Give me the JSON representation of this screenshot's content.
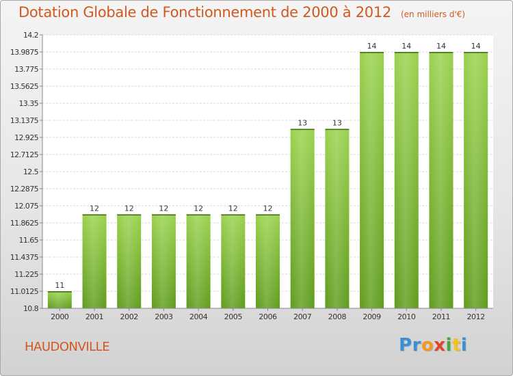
{
  "page": {
    "title": "Dotation Globale de Fonctionnement de 2000 à 2012",
    "subtitle": "(en milliers d'€)",
    "commune": "HAUDONVILLE",
    "brand": {
      "letters": [
        "P",
        "r",
        "o",
        "x",
        "i",
        "t",
        "i"
      ],
      "colors": [
        "#3a8fd6",
        "#3a8fd6",
        "#f29a1d",
        "#e2462a",
        "#4ba43c",
        "#f2c41d",
        "#3a8fd6"
      ]
    }
  },
  "chart_data": {
    "type": "bar",
    "title": "Dotation Globale de Fonctionnement de 2000 à 2012",
    "subtitle": "(en milliers d'€)",
    "categories": [
      "2000",
      "2001",
      "2002",
      "2003",
      "2004",
      "2005",
      "2006",
      "2007",
      "2008",
      "2009",
      "2010",
      "2011",
      "2012"
    ],
    "values": [
      11,
      12,
      12,
      12,
      12,
      12,
      12,
      13,
      13,
      14,
      14,
      14,
      14
    ],
    "plot_values": [
      11.0125,
      11.9687,
      11.9687,
      11.9687,
      11.9687,
      11.9687,
      11.9687,
      13.0312,
      13.0312,
      13.9875,
      13.9875,
      13.9875,
      13.9875
    ],
    "yticks": [
      "10.8",
      "11.0125",
      "11.225",
      "11.4375",
      "11.65",
      "11.8625",
      "12.075",
      "12.2875",
      "12.5",
      "12.7125",
      "12.925",
      "13.1375",
      "13.35",
      "13.5625",
      "13.775",
      "13.9875",
      "14.2"
    ],
    "ylim": [
      10.8,
      14.2
    ],
    "grid": true,
    "bar_color": "#7fc23a",
    "bar_color_dark": "#5e9a1e",
    "xlabel": "",
    "ylabel": ""
  }
}
